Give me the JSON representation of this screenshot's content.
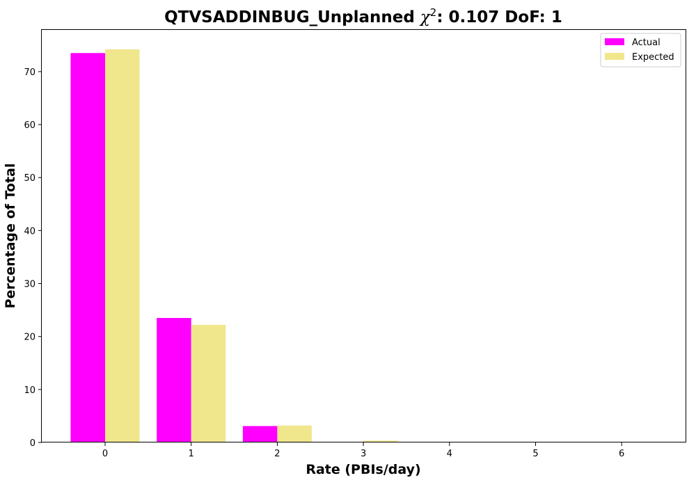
{
  "chart_data": {
    "type": "bar",
    "title_main": "QTVSADDINBUG_Unplanned ",
    "title_chi": "χ",
    "title_sup": "2",
    "title_rest": ": 0.107 DoF: 1",
    "xlabel": "Rate (PBIs/day)",
    "ylabel": "Percentage of Total",
    "categories": [
      "0",
      "1",
      "2",
      "3",
      "4",
      "5",
      "6"
    ],
    "ylim": [
      0,
      78
    ],
    "yticks": [
      0,
      10,
      20,
      30,
      40,
      50,
      60,
      70
    ],
    "legend_position": "upper-right",
    "series": [
      {
        "name": "Actual",
        "color": "#ff00ff",
        "values": [
          73.5,
          23.5,
          3.1,
          0,
          0,
          0,
          0
        ]
      },
      {
        "name": "Expected",
        "color": "#f0e68c",
        "values": [
          74.2,
          22.2,
          3.2,
          0.35,
          0.03,
          0,
          0
        ]
      }
    ]
  }
}
